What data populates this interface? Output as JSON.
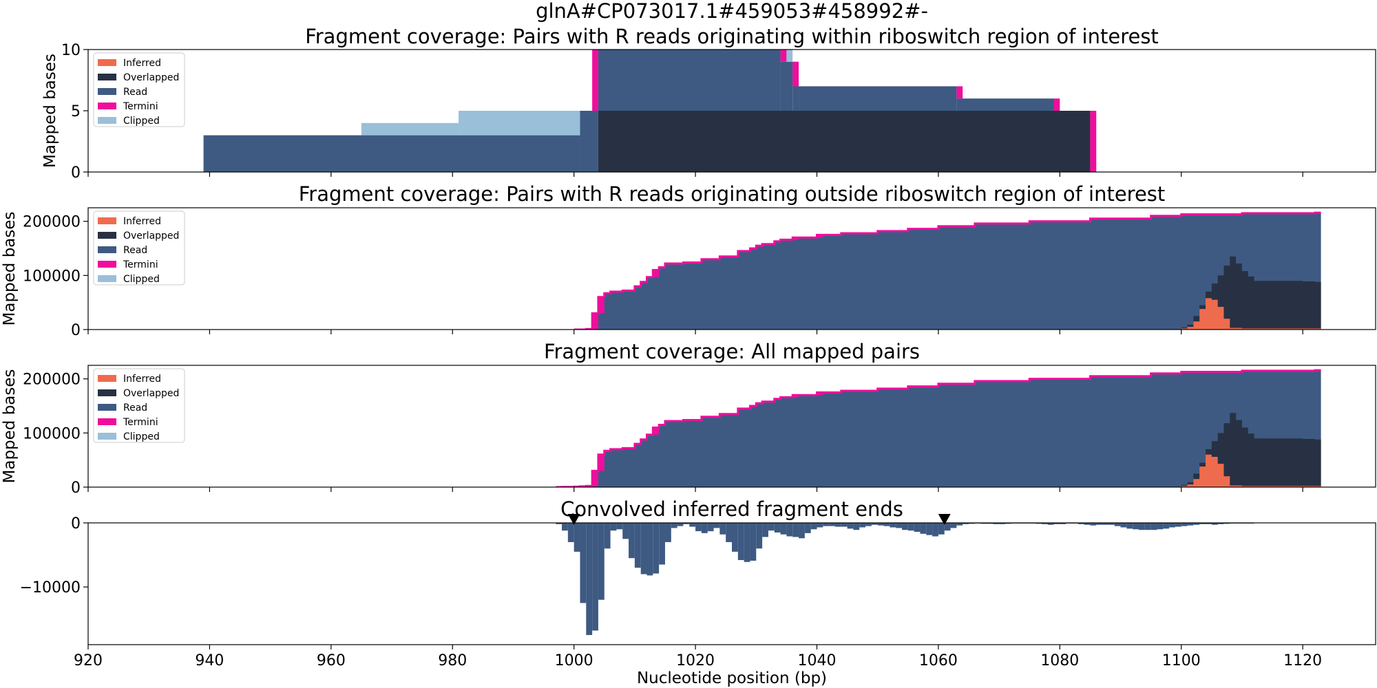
{
  "figure": {
    "suptitle": "glnA#CP073017.1#459053#458992#-",
    "xlabel": "Nucleotide position (bp)",
    "x_ticks": [
      920,
      940,
      960,
      980,
      1000,
      1020,
      1040,
      1060,
      1080,
      1100,
      1120
    ],
    "xlim": [
      920,
      1132
    ]
  },
  "colors": {
    "Inferred": "#ef6b4e",
    "Overlapped": "#283143",
    "Read": "#3e5a82",
    "Termini": "#ef0e9c",
    "Clipped": "#9abfd8",
    "Convolved": "#3e5a82"
  },
  "legend": [
    "Inferred",
    "Overlapped",
    "Read",
    "Termini",
    "Clipped"
  ],
  "chart_data": [
    {
      "type": "area",
      "title": "Fragment coverage: Pairs with R reads originating within riboswitch region of interest",
      "ylabel": "Mapped bases",
      "ylim": [
        0,
        10
      ],
      "y_ticks": [
        0,
        5,
        10
      ],
      "legend_placement": "top-left",
      "stack_order": [
        "Overlapped",
        "Read",
        "Clipped",
        "Termini"
      ],
      "segments": [
        {
          "series": "Read",
          "x0": 939,
          "x1": 1001,
          "y0": 0,
          "y1": 3
        },
        {
          "series": "Clipped",
          "x0": 965,
          "x1": 981,
          "y0": 3,
          "y1": 4
        },
        {
          "series": "Clipped",
          "x0": 981,
          "x1": 1001,
          "y0": 3,
          "y1": 5
        },
        {
          "series": "Read",
          "x0": 1001,
          "x1": 1004,
          "y0": 0,
          "y1": 5
        },
        {
          "series": "Termini",
          "x0": 1003,
          "x1": 1004,
          "y0": 5,
          "y1": 10
        },
        {
          "series": "Overlapped",
          "x0": 1004,
          "x1": 1085,
          "y0": 0,
          "y1": 5
        },
        {
          "series": "Read",
          "x0": 1004,
          "x1": 1034,
          "y0": 5,
          "y1": 10
        },
        {
          "series": "Termini",
          "x0": 1034,
          "x1": 1035,
          "y0": 9,
          "y1": 10
        },
        {
          "series": "Clipped",
          "x0": 1035,
          "x1": 1036,
          "y0": 9,
          "y1": 10
        },
        {
          "series": "Read",
          "x0": 1034,
          "x1": 1036,
          "y0": 5,
          "y1": 9
        },
        {
          "series": "Read",
          "x0": 1036,
          "x1": 1037,
          "y0": 5,
          "y1": 9
        },
        {
          "series": "Termini",
          "x0": 1036,
          "x1": 1037,
          "y0": 7,
          "y1": 9
        },
        {
          "series": "Read",
          "x0": 1037,
          "x1": 1063,
          "y0": 5,
          "y1": 7
        },
        {
          "series": "Termini",
          "x0": 1063,
          "x1": 1064,
          "y0": 6,
          "y1": 7
        },
        {
          "series": "Read",
          "x0": 1063,
          "x1": 1079,
          "y0": 5,
          "y1": 6
        },
        {
          "series": "Termini",
          "x0": 1079,
          "x1": 1080,
          "y0": 5,
          "y1": 6
        },
        {
          "series": "Termini",
          "x0": 1085,
          "x1": 1086,
          "y0": 0,
          "y1": 5
        }
      ]
    },
    {
      "type": "area",
      "title": "Fragment coverage: Pairs with R reads originating outside riboswitch region of interest",
      "ylabel": "Mapped bases",
      "ylim": [
        0,
        225000
      ],
      "y_ticks": [
        0,
        100000,
        200000
      ],
      "legend_placement": "top-left",
      "top": [
        [
          1000,
          0
        ],
        [
          1001,
          0
        ],
        [
          1002,
          1000
        ],
        [
          1003,
          30000
        ],
        [
          1004,
          60000
        ],
        [
          1005,
          67000
        ],
        [
          1006,
          70000
        ],
        [
          1008,
          72000
        ],
        [
          1009,
          72000
        ],
        [
          1010,
          80000
        ],
        [
          1011,
          88000
        ],
        [
          1012,
          97000
        ],
        [
          1013,
          110000
        ],
        [
          1014,
          115000
        ],
        [
          1015,
          122000
        ],
        [
          1018,
          124000
        ],
        [
          1021,
          130000
        ],
        [
          1024,
          135000
        ],
        [
          1027,
          145000
        ],
        [
          1029,
          150000
        ],
        [
          1030,
          155000
        ],
        [
          1031,
          158000
        ],
        [
          1033,
          163000
        ],
        [
          1034,
          166000
        ],
        [
          1036,
          170000
        ],
        [
          1040,
          175000
        ],
        [
          1044,
          178000
        ],
        [
          1050,
          182000
        ],
        [
          1055,
          186000
        ],
        [
          1060,
          191000
        ],
        [
          1066,
          196000
        ],
        [
          1075,
          200000
        ],
        [
          1085,
          205000
        ],
        [
          1095,
          210000
        ],
        [
          1100,
          213000
        ],
        [
          1110,
          215000
        ],
        [
          1122,
          216000
        ]
      ],
      "termini_marks": [
        [
          1003,
          1004
        ],
        [
          1004,
          1005
        ],
        [
          1013,
          1014
        ],
        [
          1036,
          1037
        ],
        [
          1040,
          1041
        ]
      ],
      "overlapped": [
        [
          1099,
          0
        ],
        [
          1100,
          4000
        ],
        [
          1101,
          9000
        ],
        [
          1102,
          25000
        ],
        [
          1103,
          45000
        ],
        [
          1104,
          70000
        ],
        [
          1105,
          85000
        ],
        [
          1106,
          100000
        ],
        [
          1107,
          118000
        ],
        [
          1108,
          135000
        ],
        [
          1109,
          122000
        ],
        [
          1110,
          108000
        ],
        [
          1111,
          98000
        ],
        [
          1112,
          90000
        ],
        [
          1116,
          90000
        ],
        [
          1120,
          89000
        ],
        [
          1122,
          88000
        ]
      ],
      "inferred": [
        [
          1099,
          0
        ],
        [
          1100,
          2000
        ],
        [
          1101,
          5000
        ],
        [
          1102,
          15000
        ],
        [
          1103,
          38000
        ],
        [
          1104,
          58000
        ],
        [
          1105,
          55000
        ],
        [
          1106,
          42000
        ],
        [
          1107,
          20000
        ],
        [
          1108,
          3000
        ],
        [
          1110,
          2000
        ],
        [
          1122,
          2000
        ]
      ]
    },
    {
      "type": "area",
      "title": "Fragment coverage: All mapped pairs",
      "ylabel": "Mapped bases",
      "ylim": [
        0,
        225000
      ],
      "y_ticks": [
        0,
        100000,
        200000
      ],
      "legend_placement": "top-left",
      "top": [
        [
          997,
          0
        ],
        [
          998,
          300
        ],
        [
          1000,
          800
        ],
        [
          1001,
          1500
        ],
        [
          1002,
          2000
        ],
        [
          1003,
          30000
        ],
        [
          1004,
          60000
        ],
        [
          1005,
          67000
        ],
        [
          1006,
          70000
        ],
        [
          1008,
          72000
        ],
        [
          1009,
          72000
        ],
        [
          1010,
          80000
        ],
        [
          1011,
          88000
        ],
        [
          1012,
          97000
        ],
        [
          1013,
          110000
        ],
        [
          1014,
          115000
        ],
        [
          1015,
          122000
        ],
        [
          1018,
          124000
        ],
        [
          1021,
          130000
        ],
        [
          1024,
          135000
        ],
        [
          1027,
          145000
        ],
        [
          1029,
          150000
        ],
        [
          1030,
          155000
        ],
        [
          1031,
          158000
        ],
        [
          1033,
          163000
        ],
        [
          1034,
          166000
        ],
        [
          1036,
          170000
        ],
        [
          1040,
          175000
        ],
        [
          1044,
          178000
        ],
        [
          1050,
          182000
        ],
        [
          1055,
          186000
        ],
        [
          1060,
          191000
        ],
        [
          1066,
          196000
        ],
        [
          1075,
          200000
        ],
        [
          1085,
          205000
        ],
        [
          1095,
          210000
        ],
        [
          1100,
          213000
        ],
        [
          1110,
          215000
        ],
        [
          1122,
          216000
        ]
      ],
      "termini_marks": [
        [
          1003,
          1004
        ],
        [
          1004,
          1005
        ],
        [
          1013,
          1014
        ],
        [
          1036,
          1037
        ],
        [
          1040,
          1041
        ]
      ],
      "overlapped": [
        [
          1099,
          0
        ],
        [
          1100,
          4000
        ],
        [
          1101,
          9000
        ],
        [
          1102,
          25000
        ],
        [
          1103,
          45000
        ],
        [
          1104,
          70000
        ],
        [
          1105,
          85000
        ],
        [
          1106,
          100000
        ],
        [
          1107,
          118000
        ],
        [
          1108,
          137000
        ],
        [
          1109,
          124000
        ],
        [
          1110,
          110000
        ],
        [
          1111,
          99000
        ],
        [
          1112,
          90000
        ],
        [
          1116,
          90000
        ],
        [
          1120,
          89000
        ],
        [
          1122,
          88000
        ]
      ],
      "inferred": [
        [
          1099,
          0
        ],
        [
          1100,
          2000
        ],
        [
          1101,
          5000
        ],
        [
          1102,
          15000
        ],
        [
          1103,
          38000
        ],
        [
          1104,
          60000
        ],
        [
          1105,
          56000
        ],
        [
          1106,
          43000
        ],
        [
          1107,
          20000
        ],
        [
          1108,
          3000
        ],
        [
          1110,
          2000
        ],
        [
          1122,
          2000
        ]
      ]
    },
    {
      "type": "bar",
      "title": "Convolved inferred fragment ends",
      "ylabel": "",
      "ylim": [
        -19000,
        0
      ],
      "y_ticks": [
        0,
        -10000
      ],
      "markers_x": [
        1000,
        1061
      ],
      "bars": [
        [
          997,
          -200
        ],
        [
          998,
          -1200
        ],
        [
          999,
          -3000
        ],
        [
          1000,
          -4500
        ],
        [
          1001,
          -12500
        ],
        [
          1002,
          -17500
        ],
        [
          1003,
          -16800
        ],
        [
          1004,
          -12000
        ],
        [
          1005,
          -4000
        ],
        [
          1006,
          -1200
        ],
        [
          1007,
          -1000
        ],
        [
          1008,
          -2500
        ],
        [
          1009,
          -5500
        ],
        [
          1010,
          -7000
        ],
        [
          1011,
          -8000
        ],
        [
          1012,
          -8200
        ],
        [
          1013,
          -7900
        ],
        [
          1014,
          -6500
        ],
        [
          1015,
          -3000
        ],
        [
          1016,
          -800
        ],
        [
          1017,
          -500
        ],
        [
          1018,
          -200
        ],
        [
          1019,
          -600
        ],
        [
          1020,
          -1300
        ],
        [
          1021,
          -1600
        ],
        [
          1022,
          -1300
        ],
        [
          1023,
          -800
        ],
        [
          1024,
          -1800
        ],
        [
          1025,
          -3000
        ],
        [
          1026,
          -4500
        ],
        [
          1027,
          -5800
        ],
        [
          1028,
          -6100
        ],
        [
          1029,
          -5900
        ],
        [
          1030,
          -4000
        ],
        [
          1031,
          -2200
        ],
        [
          1032,
          -1200
        ],
        [
          1033,
          -1500
        ],
        [
          1034,
          -1800
        ],
        [
          1035,
          -2100
        ],
        [
          1036,
          -2200
        ],
        [
          1037,
          -2400
        ],
        [
          1038,
          -1600
        ],
        [
          1039,
          -1000
        ],
        [
          1040,
          -700
        ],
        [
          1041,
          -500
        ],
        [
          1042,
          -500
        ],
        [
          1043,
          -600
        ],
        [
          1044,
          -600
        ],
        [
          1045,
          -900
        ],
        [
          1046,
          -1100
        ],
        [
          1047,
          -700
        ],
        [
          1048,
          -500
        ],
        [
          1049,
          -300
        ],
        [
          1050,
          -400
        ],
        [
          1051,
          -500
        ],
        [
          1052,
          -700
        ],
        [
          1053,
          -800
        ],
        [
          1054,
          -1100
        ],
        [
          1055,
          -1200
        ],
        [
          1056,
          -1400
        ],
        [
          1057,
          -1700
        ],
        [
          1058,
          -1900
        ],
        [
          1059,
          -2100
        ],
        [
          1060,
          -1800
        ],
        [
          1061,
          -1200
        ],
        [
          1062,
          -800
        ],
        [
          1063,
          -400
        ],
        [
          1064,
          -200
        ],
        [
          1065,
          -150
        ],
        [
          1066,
          -100
        ],
        [
          1067,
          -150
        ],
        [
          1068,
          -150
        ],
        [
          1069,
          -200
        ],
        [
          1070,
          -200
        ],
        [
          1071,
          -150
        ],
        [
          1072,
          -100
        ],
        [
          1073,
          -100
        ],
        [
          1074,
          -100
        ],
        [
          1075,
          -100
        ],
        [
          1076,
          -150
        ],
        [
          1077,
          -200
        ],
        [
          1078,
          -300
        ],
        [
          1079,
          -200
        ],
        [
          1080,
          -200
        ],
        [
          1081,
          -100
        ],
        [
          1082,
          -100
        ],
        [
          1083,
          -200
        ],
        [
          1084,
          -300
        ],
        [
          1085,
          -400
        ],
        [
          1086,
          -300
        ],
        [
          1087,
          -300
        ],
        [
          1088,
          -300
        ],
        [
          1089,
          -500
        ],
        [
          1090,
          -700
        ],
        [
          1091,
          -900
        ],
        [
          1092,
          -1000
        ],
        [
          1093,
          -1100
        ],
        [
          1094,
          -1100
        ],
        [
          1095,
          -1100
        ],
        [
          1096,
          -1000
        ],
        [
          1097,
          -900
        ],
        [
          1098,
          -700
        ],
        [
          1099,
          -600
        ],
        [
          1100,
          -500
        ],
        [
          1101,
          -400
        ],
        [
          1102,
          -300
        ],
        [
          1103,
          -200
        ],
        [
          1104,
          -200
        ],
        [
          1105,
          -300
        ],
        [
          1106,
          -200
        ],
        [
          1107,
          -150
        ],
        [
          1108,
          -100
        ],
        [
          1109,
          -100
        ],
        [
          1110,
          -100
        ],
        [
          1111,
          -100
        ],
        [
          1112,
          -50
        ]
      ]
    }
  ]
}
